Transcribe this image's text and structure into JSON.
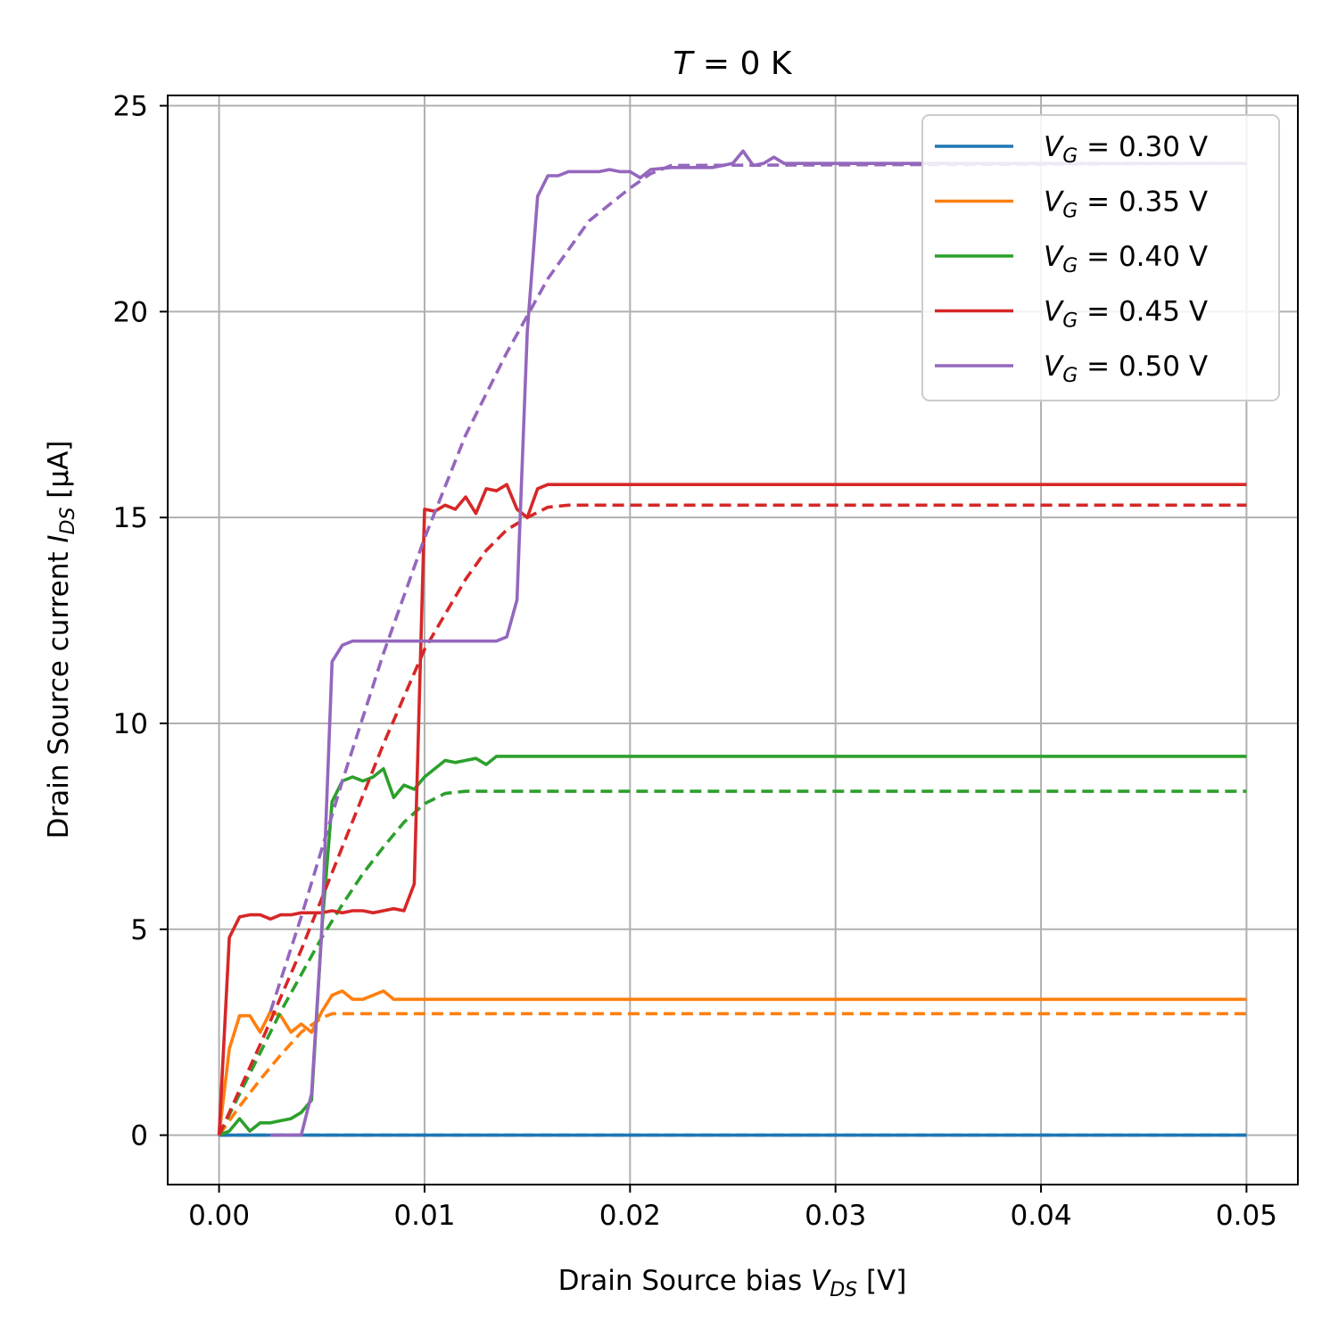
{
  "chart_data": {
    "type": "line",
    "title": {
      "italic": "T",
      "rest": " = 0 K"
    },
    "xlabel": {
      "prefix": "Drain Source bias ",
      "var": "V",
      "sub": "DS",
      "suffix": " [V]"
    },
    "ylabel": {
      "prefix": "Drain Source current ",
      "var": "I",
      "sub": "DS",
      "suffix": " [μA]"
    },
    "xlim": [
      -0.0025,
      0.0525
    ],
    "ylim": [
      -1.2,
      25.25
    ],
    "xticks": [
      0.0,
      0.01,
      0.02,
      0.03,
      0.04,
      0.05
    ],
    "xtick_labels": [
      "0.00",
      "0.01",
      "0.02",
      "0.03",
      "0.04",
      "0.05"
    ],
    "yticks": [
      0,
      5,
      10,
      15,
      20,
      25
    ],
    "ytick_labels": [
      "0",
      "5",
      "10",
      "15",
      "20",
      "25"
    ],
    "grid": true,
    "legend_position": "top-right",
    "series": [
      {
        "name": "V_G = 0.30 V",
        "legend": {
          "var": "V",
          "sub": "G",
          "rest": " = 0.30 V"
        },
        "color": "#1f77b4",
        "measured": {
          "x": [
            0,
            0.05
          ],
          "y": [
            0,
            0
          ]
        },
        "fit": {
          "x": [
            0,
            0.05
          ],
          "y": [
            0,
            0
          ]
        }
      },
      {
        "name": "V_G = 0.35 V",
        "legend": {
          "var": "V",
          "sub": "G",
          "rest": " = 0.35 V"
        },
        "color": "#ff7f0e",
        "measured": {
          "x": [
            0,
            0.0005,
            0.001,
            0.0015,
            0.002,
            0.0025,
            0.003,
            0.0035,
            0.004,
            0.0045,
            0.005,
            0.0055,
            0.006,
            0.0065,
            0.007,
            0.0075,
            0.008,
            0.0085,
            0.009,
            0.01,
            0.02,
            0.03,
            0.04,
            0.05
          ],
          "y": [
            0,
            2.1,
            2.9,
            2.9,
            2.5,
            3.0,
            2.9,
            2.5,
            2.7,
            2.5,
            3.0,
            3.4,
            3.5,
            3.3,
            3.3,
            3.4,
            3.5,
            3.3,
            3.3,
            3.3,
            3.3,
            3.3,
            3.3,
            3.3
          ]
        },
        "fit": {
          "x": [
            0,
            0.001,
            0.002,
            0.003,
            0.004,
            0.005,
            0.0055,
            0.006,
            0.05
          ],
          "y": [
            0,
            0.7,
            1.35,
            1.95,
            2.5,
            2.85,
            2.95,
            2.95,
            2.95
          ]
        }
      },
      {
        "name": "V_G = 0.40 V",
        "legend": {
          "var": "V",
          "sub": "G",
          "rest": " = 0.40 V"
        },
        "color": "#2ca02c",
        "measured": {
          "x": [
            0,
            0.0005,
            0.001,
            0.0015,
            0.002,
            0.0025,
            0.003,
            0.0035,
            0.004,
            0.0045,
            0.005,
            0.0055,
            0.006,
            0.0065,
            0.007,
            0.0075,
            0.008,
            0.0085,
            0.009,
            0.0095,
            0.01,
            0.011,
            0.0115,
            0.012,
            0.0125,
            0.013,
            0.0135,
            0.014,
            0.02,
            0.03,
            0.04,
            0.05
          ],
          "y": [
            0,
            0.1,
            0.4,
            0.1,
            0.3,
            0.3,
            0.35,
            0.4,
            0.55,
            0.85,
            5.0,
            8.1,
            8.6,
            8.7,
            8.6,
            8.7,
            8.9,
            8.2,
            8.5,
            8.4,
            8.7,
            9.1,
            9.05,
            9.1,
            9.15,
            9.0,
            9.2,
            9.2,
            9.2,
            9.2,
            9.2,
            9.2
          ]
        },
        "fit": {
          "x": [
            0,
            0.001,
            0.002,
            0.003,
            0.004,
            0.005,
            0.006,
            0.007,
            0.008,
            0.009,
            0.01,
            0.011,
            0.012,
            0.05
          ],
          "y": [
            0,
            1.0,
            2.0,
            3.0,
            3.9,
            4.8,
            5.6,
            6.35,
            7.0,
            7.6,
            8.05,
            8.3,
            8.35,
            8.35
          ]
        }
      },
      {
        "name": "V_G = 0.45 V",
        "legend": {
          "var": "V",
          "sub": "G",
          "rest": " = 0.45 V"
        },
        "color": "#d62728",
        "measured": {
          "x": [
            0,
            0.0005,
            0.001,
            0.0015,
            0.002,
            0.0025,
            0.003,
            0.0035,
            0.004,
            0.0045,
            0.005,
            0.0055,
            0.006,
            0.0065,
            0.007,
            0.0075,
            0.008,
            0.0085,
            0.009,
            0.0095,
            0.01,
            0.0105,
            0.011,
            0.0115,
            0.012,
            0.0125,
            0.013,
            0.0135,
            0.014,
            0.0145,
            0.015,
            0.0155,
            0.016,
            0.02,
            0.03,
            0.04,
            0.05
          ],
          "y": [
            0,
            4.8,
            5.3,
            5.35,
            5.35,
            5.25,
            5.35,
            5.35,
            5.4,
            5.4,
            5.4,
            5.45,
            5.4,
            5.45,
            5.45,
            5.4,
            5.45,
            5.5,
            5.45,
            6.1,
            15.2,
            15.15,
            15.3,
            15.2,
            15.5,
            15.1,
            15.7,
            15.65,
            15.8,
            15.2,
            15.0,
            15.7,
            15.8,
            15.8,
            15.8,
            15.8,
            15.8
          ]
        },
        "fit": {
          "x": [
            0,
            0.002,
            0.004,
            0.006,
            0.008,
            0.01,
            0.012,
            0.013,
            0.014,
            0.015,
            0.016,
            0.017,
            0.05
          ],
          "y": [
            0,
            2.2,
            4.5,
            7.0,
            9.5,
            11.8,
            13.5,
            14.2,
            14.7,
            15.0,
            15.25,
            15.3,
            15.3
          ]
        }
      },
      {
        "name": "V_G = 0.50 V",
        "legend": {
          "var": "V",
          "sub": "G",
          "rest": " = 0.50 V"
        },
        "color": "#9467bd",
        "measured": {
          "x": [
            0.0025,
            0.003,
            0.0035,
            0.004,
            0.0045,
            0.005,
            0.0055,
            0.006,
            0.0065,
            0.007,
            0.0075,
            0.008,
            0.009,
            0.01,
            0.011,
            0.012,
            0.013,
            0.0135,
            0.014,
            0.0145,
            0.015,
            0.0155,
            0.016,
            0.0165,
            0.017,
            0.0175,
            0.018,
            0.0185,
            0.019,
            0.0195,
            0.02,
            0.0205,
            0.021,
            0.022,
            0.023,
            0.024,
            0.025,
            0.0255,
            0.026,
            0.0265,
            0.027,
            0.0275,
            0.028,
            0.03,
            0.04,
            0.05
          ],
          "y": [
            0,
            0,
            0,
            0,
            1.0,
            5.0,
            11.5,
            11.9,
            12.0,
            12.0,
            12.0,
            12.0,
            12.0,
            12.0,
            12.0,
            12.0,
            12.0,
            12.0,
            12.1,
            13.0,
            19.5,
            22.8,
            23.3,
            23.3,
            23.4,
            23.4,
            23.4,
            23.4,
            23.45,
            23.4,
            23.4,
            23.25,
            23.45,
            23.5,
            23.5,
            23.5,
            23.6,
            23.9,
            23.55,
            23.6,
            23.75,
            23.6,
            23.6,
            23.6,
            23.6,
            23.6
          ]
        },
        "fit": {
          "x": [
            0.0025,
            0.004,
            0.006,
            0.008,
            0.01,
            0.012,
            0.014,
            0.016,
            0.018,
            0.02,
            0.021,
            0.022,
            0.05
          ],
          "y": [
            3.0,
            5.3,
            8.6,
            11.7,
            14.5,
            17.0,
            19.0,
            20.8,
            22.2,
            23.0,
            23.35,
            23.55,
            23.6
          ]
        }
      }
    ]
  }
}
